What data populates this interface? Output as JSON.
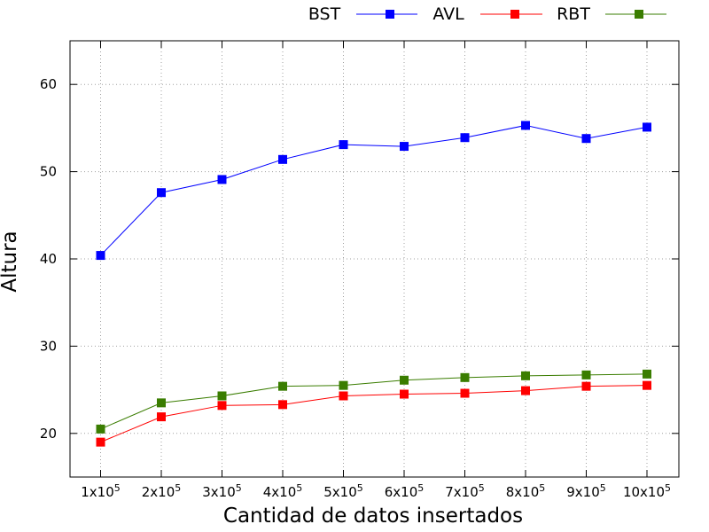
{
  "chart_data": {
    "type": "line",
    "title": "",
    "xlabel": "Cantidad de datos insertados",
    "ylabel": "Altura",
    "categories": [
      "1x10^5",
      "2x10^5",
      "3x10^5",
      "4x10^5",
      "5x10^5",
      "6x10^5",
      "7x10^5",
      "8x10^5",
      "9x10^5",
      "10x10^5"
    ],
    "category_labels": [
      {
        "base": "1x10",
        "exp": "5"
      },
      {
        "base": "2x10",
        "exp": "5"
      },
      {
        "base": "3x10",
        "exp": "5"
      },
      {
        "base": "4x10",
        "exp": "5"
      },
      {
        "base": "5x10",
        "exp": "5"
      },
      {
        "base": "6x10",
        "exp": "5"
      },
      {
        "base": "7x10",
        "exp": "5"
      },
      {
        "base": "8x10",
        "exp": "5"
      },
      {
        "base": "9x10",
        "exp": "5"
      },
      {
        "base": "10x10",
        "exp": "5"
      }
    ],
    "ylim": [
      15,
      65
    ],
    "yticks": [
      20,
      30,
      40,
      50,
      60
    ],
    "grid": true,
    "legend_position": "top-right, outside plot",
    "series": [
      {
        "name": "BST",
        "color": "#0000ff",
        "marker": "square",
        "values": [
          40.4,
          47.6,
          49.1,
          51.4,
          53.1,
          52.9,
          53.9,
          55.3,
          53.8,
          55.1
        ]
      },
      {
        "name": "AVL",
        "color": "#ff0000",
        "marker": "square",
        "values": [
          19.0,
          21.9,
          23.2,
          23.3,
          24.3,
          24.5,
          24.6,
          24.9,
          25.4,
          25.5
        ]
      },
      {
        "name": "RBT",
        "color": "#3a7d00",
        "marker": "square",
        "values": [
          20.5,
          23.5,
          24.3,
          25.4,
          25.5,
          26.1,
          26.4,
          26.6,
          26.7,
          26.8
        ]
      }
    ]
  }
}
